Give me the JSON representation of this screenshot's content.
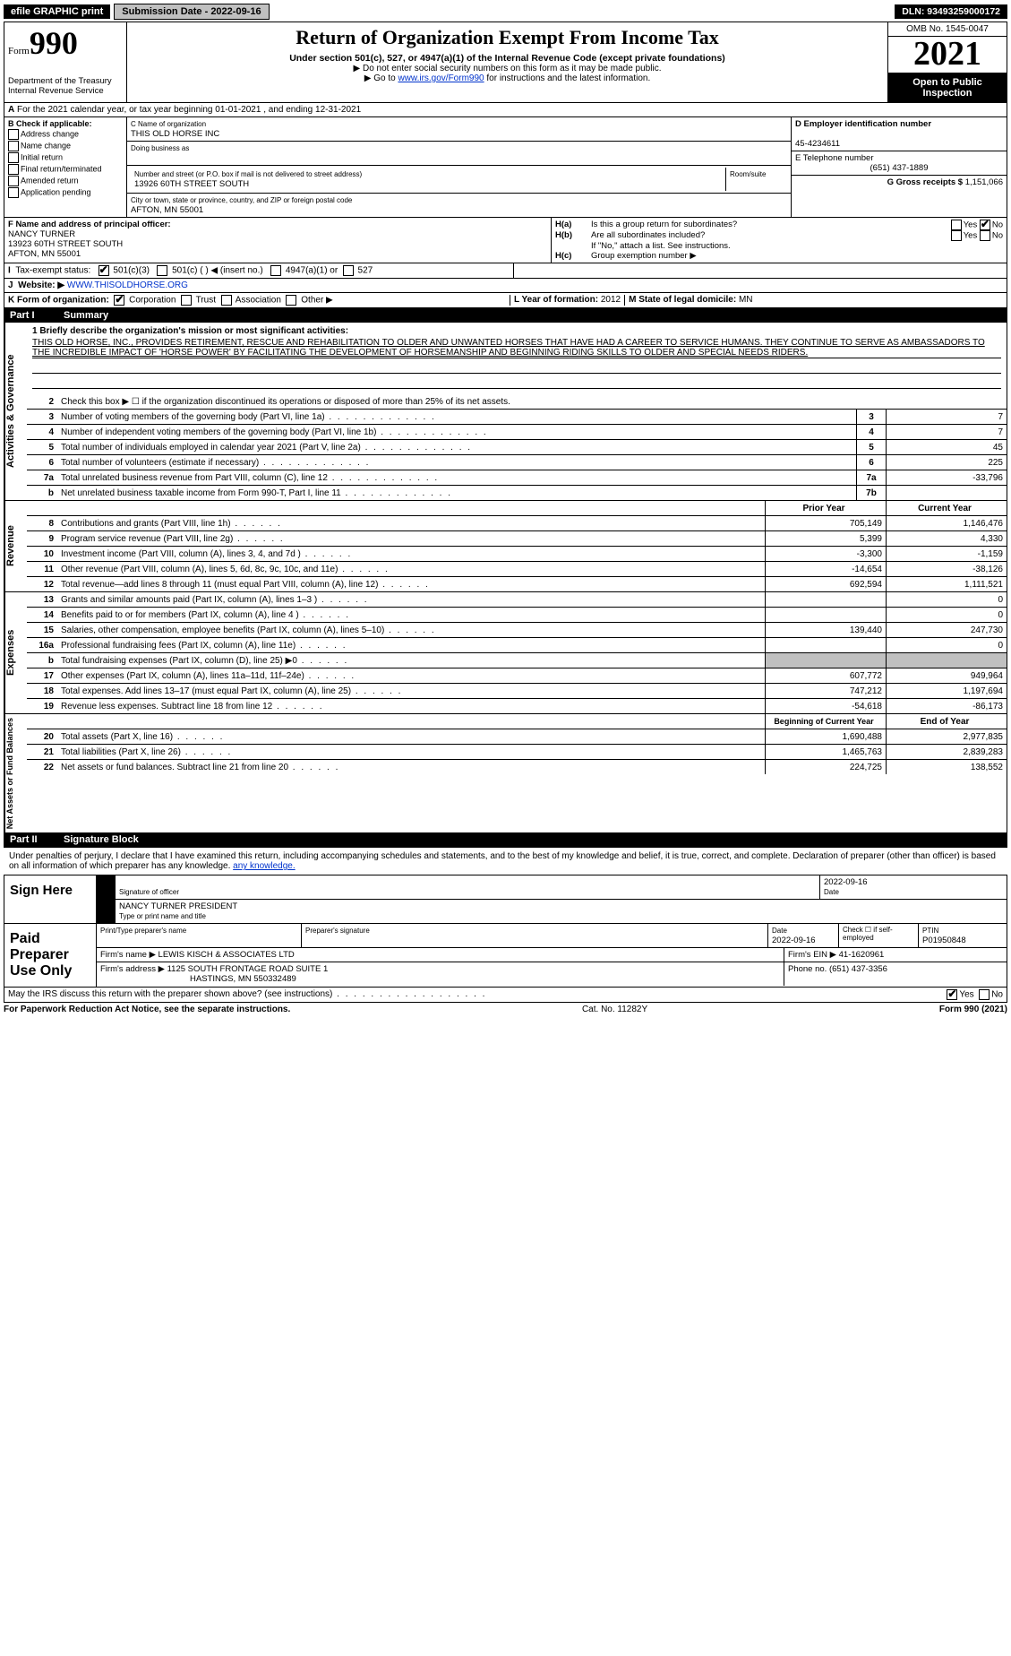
{
  "topbar": {
    "efile": "efile GRAPHIC print",
    "submission": "Submission Date - 2022-09-16",
    "dln": "DLN: 93493259000172"
  },
  "header": {
    "form_word": "Form",
    "form_num": "990",
    "title": "Return of Organization Exempt From Income Tax",
    "subtitle": "Under section 501(c), 527, or 4947(a)(1) of the Internal Revenue Code (except private foundations)",
    "note1": "▶ Do not enter social security numbers on this form as it may be made public.",
    "note2_pre": "▶ Go to ",
    "note2_link": "www.irs.gov/Form990",
    "note2_post": " for instructions and the latest information.",
    "omb": "OMB No. 1545-0047",
    "year": "2021",
    "open": "Open to Public Inspection",
    "dept": "Department of the Treasury",
    "irs": "Internal Revenue Service"
  },
  "row_a": "For the 2021 calendar year, or tax year beginning 01-01-2021    , and ending 12-31-2021",
  "col_b": {
    "title": "B Check if applicable:",
    "opts": [
      "Address change",
      "Name change",
      "Initial return",
      "Final return/terminated",
      "Amended return",
      "Application pending"
    ]
  },
  "col_c": {
    "name_lbl": "C Name of organization",
    "name": "THIS OLD HORSE INC",
    "dba_lbl": "Doing business as",
    "addr_lbl": "Number and street (or P.O. box if mail is not delivered to street address)",
    "addr": "13926 60TH STREET SOUTH",
    "room_lbl": "Room/suite",
    "city_lbl": "City or town, state or province, country, and ZIP or foreign postal code",
    "city": "AFTON, MN  55001"
  },
  "col_d": {
    "ein_lbl": "D Employer identification number",
    "ein": "45-4234611",
    "tel_lbl": "E Telephone number",
    "tel": "(651) 437-1889",
    "gross_lbl": "G Gross receipts $",
    "gross": "1,151,066"
  },
  "col_f": {
    "lbl": "F  Name and address of principal officer:",
    "name": "NANCY TURNER",
    "addr1": "13923 60TH STREET SOUTH",
    "addr2": "AFTON, MN  55001"
  },
  "col_h": {
    "a_lbl": "H(a)",
    "a_txt": "Is this a group return for subordinates?",
    "b_lbl": "H(b)",
    "b_txt": "Are all subordinates included?",
    "b_note": "If \"No,\" attach a list. See instructions.",
    "c_lbl": "H(c)",
    "c_txt": "Group exemption number ▶",
    "yes": "Yes",
    "no": "No"
  },
  "row_i": {
    "lbl": "Tax-exempt status:",
    "o1": "501(c)(3)",
    "o2": "501(c) (  ) ◀ (insert no.)",
    "o3": "4947(a)(1) or",
    "o4": "527"
  },
  "row_j": {
    "lbl": "Website: ▶",
    "val": "WWW.THISOLDHORSE.ORG"
  },
  "row_k": {
    "lbl": "K Form of organization:",
    "o1": "Corporation",
    "o2": "Trust",
    "o3": "Association",
    "o4": "Other ▶",
    "l_lbl": "L Year of formation:",
    "l_val": "2012",
    "m_lbl": "M State of legal domicile:",
    "m_val": "MN"
  },
  "part1": {
    "num": "Part I",
    "title": "Summary"
  },
  "mission": {
    "lbl": "1  Briefly describe the organization's mission or most significant activities:",
    "txt": "THIS OLD HORSE, INC., PROVIDES RETIREMENT, RESCUE AND REHABILITATION TO OLDER AND UNWANTED HORSES THAT HAVE HAD A CAREER TO SERVICE HUMANS. THEY CONTINUE TO SERVE AS AMBASSADORS TO THE INCREDIBLE IMPACT OF 'HORSE POWER' BY FACILITATING THE DEVELOPMENT OF HORSEMANSHIP AND BEGINNING RIDING SKILLS TO OLDER AND SPECIAL NEEDS RIDERS."
  },
  "sidebars": {
    "gov": "Activities & Governance",
    "rev": "Revenue",
    "exp": "Expenses",
    "net": "Net Assets or Fund Balances"
  },
  "gov_lines": [
    {
      "n": "2",
      "d": "Check this box ▶ ☐  if the organization discontinued its operations or disposed of more than 25% of its net assets."
    },
    {
      "n": "3",
      "d": "Number of voting members of the governing body (Part VI, line 1a)",
      "box": "3",
      "v": "7"
    },
    {
      "n": "4",
      "d": "Number of independent voting members of the governing body (Part VI, line 1b)",
      "box": "4",
      "v": "7"
    },
    {
      "n": "5",
      "d": "Total number of individuals employed in calendar year 2021 (Part V, line 2a)",
      "box": "5",
      "v": "45"
    },
    {
      "n": "6",
      "d": "Total number of volunteers (estimate if necessary)",
      "box": "6",
      "v": "225"
    },
    {
      "n": "7a",
      "d": "Total unrelated business revenue from Part VIII, column (C), line 12",
      "box": "7a",
      "v": "-33,796"
    },
    {
      "n": "b",
      "d": "Net unrelated business taxable income from Form 990-T, Part I, line 11",
      "box": "7b",
      "v": ""
    }
  ],
  "cols_hdr": {
    "prior": "Prior Year",
    "current": "Current Year"
  },
  "rev_lines": [
    {
      "n": "8",
      "d": "Contributions and grants (Part VIII, line 1h)",
      "p": "705,149",
      "c": "1,146,476"
    },
    {
      "n": "9",
      "d": "Program service revenue (Part VIII, line 2g)",
      "p": "5,399",
      "c": "4,330"
    },
    {
      "n": "10",
      "d": "Investment income (Part VIII, column (A), lines 3, 4, and 7d )",
      "p": "-3,300",
      "c": "-1,159"
    },
    {
      "n": "11",
      "d": "Other revenue (Part VIII, column (A), lines 5, 6d, 8c, 9c, 10c, and 11e)",
      "p": "-14,654",
      "c": "-38,126"
    },
    {
      "n": "12",
      "d": "Total revenue—add lines 8 through 11 (must equal Part VIII, column (A), line 12)",
      "p": "692,594",
      "c": "1,111,521"
    }
  ],
  "exp_lines": [
    {
      "n": "13",
      "d": "Grants and similar amounts paid (Part IX, column (A), lines 1–3 )",
      "p": "",
      "c": "0"
    },
    {
      "n": "14",
      "d": "Benefits paid to or for members (Part IX, column (A), line 4 )",
      "p": "",
      "c": "0"
    },
    {
      "n": "15",
      "d": "Salaries, other compensation, employee benefits (Part IX, column (A), lines 5–10)",
      "p": "139,440",
      "c": "247,730"
    },
    {
      "n": "16a",
      "d": "Professional fundraising fees (Part IX, column (A), line 11e)",
      "p": "",
      "c": "0"
    },
    {
      "n": "b",
      "d": "Total fundraising expenses (Part IX, column (D), line 25) ▶0",
      "p": "shade",
      "c": "shade"
    },
    {
      "n": "17",
      "d": "Other expenses (Part IX, column (A), lines 11a–11d, 11f–24e)",
      "p": "607,772",
      "c": "949,964"
    },
    {
      "n": "18",
      "d": "Total expenses. Add lines 13–17 (must equal Part IX, column (A), line 25)",
      "p": "747,212",
      "c": "1,197,694"
    },
    {
      "n": "19",
      "d": "Revenue less expenses. Subtract line 18 from line 12",
      "p": "-54,618",
      "c": "-86,173"
    }
  ],
  "net_hdr": {
    "beg": "Beginning of Current Year",
    "end": "End of Year"
  },
  "net_lines": [
    {
      "n": "20",
      "d": "Total assets (Part X, line 16)",
      "p": "1,690,488",
      "c": "2,977,835"
    },
    {
      "n": "21",
      "d": "Total liabilities (Part X, line 26)",
      "p": "1,465,763",
      "c": "2,839,283"
    },
    {
      "n": "22",
      "d": "Net assets or fund balances. Subtract line 21 from line 20",
      "p": "224,725",
      "c": "138,552"
    }
  ],
  "part2": {
    "num": "Part II",
    "title": "Signature Block"
  },
  "sig_intro": "Under penalties of perjury, I declare that I have examined this return, including accompanying schedules and statements, and to the best of my knowledge and belief, it is true, correct, and complete. Declaration of preparer (other than officer) is based on all information of which preparer has any knowledge.",
  "sign_here": {
    "lbl": "Sign Here",
    "sig_lbl": "Signature of officer",
    "date_lbl": "Date",
    "date": "2022-09-16",
    "name": "NANCY TURNER  PRESIDENT",
    "name_lbl": "Type or print name and title"
  },
  "paid": {
    "lbl": "Paid Preparer Use Only",
    "h1": "Print/Type preparer's name",
    "h2": "Preparer's signature",
    "h3": "Date",
    "h3v": "2022-09-16",
    "h4": "Check ☐ if self-employed",
    "h5": "PTIN",
    "h5v": "P01950848",
    "firm_lbl": "Firm's name    ▶",
    "firm": "LEWIS KISCH & ASSOCIATES LTD",
    "ein_lbl": "Firm's EIN ▶",
    "ein": "41-1620961",
    "addr_lbl": "Firm's address ▶",
    "addr1": "1125 SOUTH FRONTAGE ROAD SUITE 1",
    "addr2": "HASTINGS, MN  550332489",
    "phone_lbl": "Phone no.",
    "phone": "(651) 437-3356"
  },
  "may_irs": "May the IRS discuss this return with the preparer shown above? (see instructions)",
  "footer": {
    "left": "For Paperwork Reduction Act Notice, see the separate instructions.",
    "mid": "Cat. No. 11282Y",
    "right": "Form 990 (2021)"
  }
}
